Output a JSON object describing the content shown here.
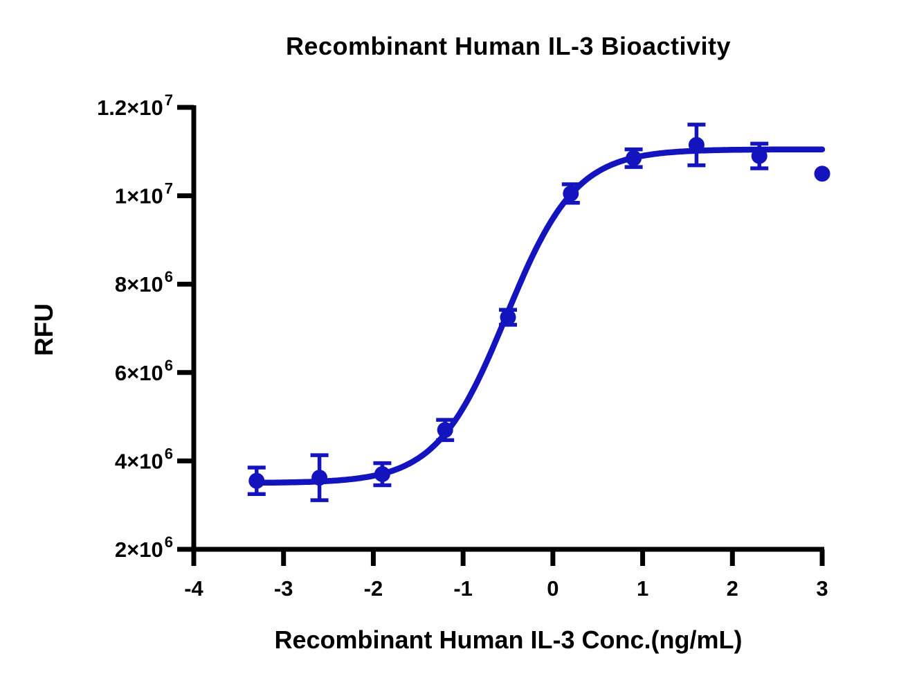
{
  "chart_data": {
    "type": "scatter",
    "title": "Recombinant Human IL-3 Bioactivity",
    "xlabel": "Recombinant Human IL-3 Conc.(ng/mL)",
    "ylabel": "RFU",
    "xlim": [
      -4,
      3
    ],
    "ylim": [
      2000000,
      12000000
    ],
    "grid": false,
    "legend": "none",
    "axis_color": "#000000",
    "series_color": "#1414BE",
    "x": [
      -3.3,
      -2.6,
      -1.9,
      -1.2,
      -0.5,
      0.2,
      0.9,
      1.6,
      2.3,
      3.0
    ],
    "y": [
      3550000,
      3620000,
      3700000,
      4700000,
      7250000,
      10050000,
      10850000,
      11150000,
      10900000,
      10500000
    ],
    "y_err": [
      300000,
      510000,
      250000,
      230000,
      170000,
      210000,
      200000,
      460000,
      280000,
      0
    ],
    "fit_curve": {
      "model": "4PL sigmoid",
      "bottom": 3500000,
      "top": 11050000,
      "log_ec50": -0.52,
      "hill_slope": 1.12,
      "x_range": [
        -3.3,
        3.0
      ]
    },
    "xticks": [
      {
        "value": -4,
        "label": "-4"
      },
      {
        "value": -3,
        "label": "-3"
      },
      {
        "value": -2,
        "label": "-2"
      },
      {
        "value": -1,
        "label": "-1"
      },
      {
        "value": 0,
        "label": "0"
      },
      {
        "value": 1,
        "label": "1"
      },
      {
        "value": 2,
        "label": "2"
      },
      {
        "value": 3,
        "label": "3"
      }
    ],
    "yticks": [
      {
        "value": 2000000,
        "base": "2×10",
        "exp": "6"
      },
      {
        "value": 4000000,
        "base": "4×10",
        "exp": "6"
      },
      {
        "value": 6000000,
        "base": "6×10",
        "exp": "6"
      },
      {
        "value": 8000000,
        "base": "8×10",
        "exp": "6"
      },
      {
        "value": 10000000,
        "base": "1×10",
        "exp": "7"
      },
      {
        "value": 12000000,
        "base": "1.2×10",
        "exp": "7"
      }
    ]
  }
}
